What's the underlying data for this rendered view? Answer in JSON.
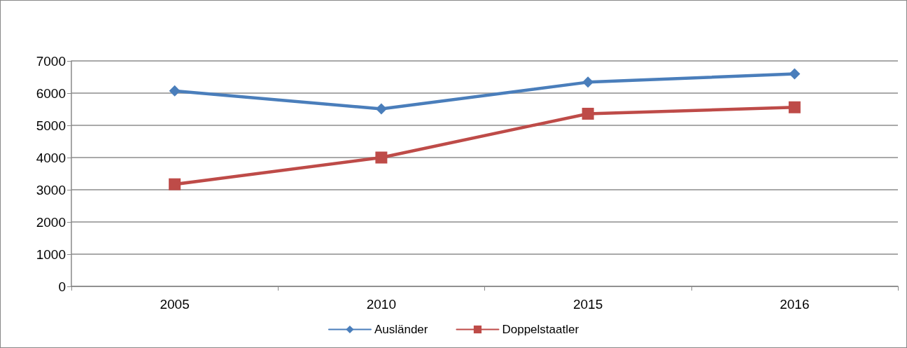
{
  "chart_data": {
    "type": "line",
    "categories": [
      "2005",
      "2010",
      "2015",
      "2016"
    ],
    "series": [
      {
        "name": "Ausländer",
        "color": "#4a7ebb",
        "marker": "diamond",
        "values": [
          6070,
          5510,
          6340,
          6600
        ]
      },
      {
        "name": "Doppelstaatler",
        "color": "#be4b48",
        "marker": "square",
        "values": [
          3170,
          4000,
          5360,
          5560
        ]
      }
    ],
    "ylim": [
      0,
      7000
    ],
    "yticks": [
      0,
      1000,
      2000,
      3000,
      4000,
      5000,
      6000,
      7000
    ],
    "grid": "y",
    "legend": "bottom",
    "line_style": "solid"
  }
}
